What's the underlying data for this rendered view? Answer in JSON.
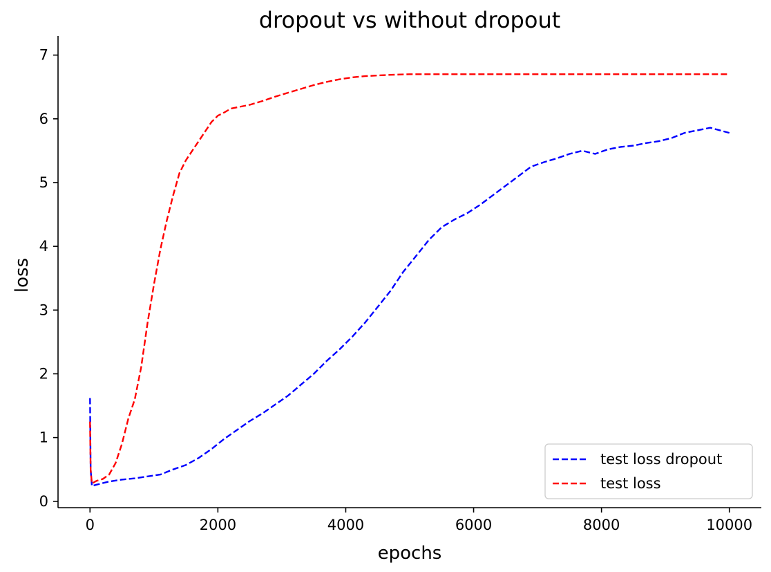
{
  "chart_data": {
    "type": "line",
    "title": "dropout vs without dropout",
    "xlabel": "epochs",
    "ylabel": "loss",
    "xlim": [
      -500,
      10500
    ],
    "ylim": [
      -0.1,
      7.3
    ],
    "xticks": [
      0,
      2000,
      4000,
      6000,
      8000,
      10000
    ],
    "xtick_labels": [
      "0",
      "2000",
      "4000",
      "6000",
      "8000",
      "10000"
    ],
    "yticks": [
      0,
      1,
      2,
      3,
      4,
      5,
      6,
      7
    ],
    "ytick_labels": [
      "0",
      "1",
      "2",
      "3",
      "4",
      "5",
      "6",
      "7"
    ],
    "grid": false,
    "legend_position": "lower-right",
    "series": [
      {
        "name": "test loss dropout",
        "color": "#0000ff",
        "line_style": "dashed",
        "x": [
          0,
          10,
          30,
          100,
          300,
          500,
          700,
          900,
          1100,
          1300,
          1500,
          1700,
          1900,
          2100,
          2300,
          2500,
          2700,
          2900,
          3100,
          3300,
          3500,
          3700,
          3900,
          4100,
          4300,
          4500,
          4700,
          4900,
          5100,
          5300,
          5500,
          5700,
          5900,
          6100,
          6300,
          6500,
          6700,
          6900,
          7100,
          7300,
          7500,
          7700,
          7900,
          8100,
          8300,
          8500,
          8700,
          8900,
          9100,
          9300,
          9500,
          9700,
          10000
        ],
        "y": [
          1.62,
          0.5,
          0.24,
          0.26,
          0.31,
          0.34,
          0.36,
          0.39,
          0.42,
          0.5,
          0.57,
          0.68,
          0.82,
          0.98,
          1.12,
          1.26,
          1.38,
          1.52,
          1.66,
          1.83,
          2.0,
          2.2,
          2.38,
          2.58,
          2.8,
          3.05,
          3.3,
          3.6,
          3.85,
          4.1,
          4.3,
          4.42,
          4.52,
          4.65,
          4.8,
          4.95,
          5.1,
          5.25,
          5.32,
          5.38,
          5.45,
          5.5,
          5.45,
          5.52,
          5.56,
          5.58,
          5.62,
          5.65,
          5.7,
          5.78,
          5.82,
          5.86,
          5.78
        ]
      },
      {
        "name": "test loss",
        "color": "#ff0000",
        "line_style": "dashed",
        "x": [
          0,
          10,
          30,
          100,
          200,
          300,
          400,
          500,
          600,
          700,
          800,
          900,
          1000,
          1100,
          1200,
          1300,
          1400,
          1500,
          1600,
          1700,
          1800,
          1900,
          2000,
          2100,
          2200,
          2300,
          2500,
          2700,
          2900,
          3100,
          3300,
          3500,
          3700,
          3900,
          4100,
          4300,
          4500,
          4700,
          5000,
          5500,
          6000,
          6500,
          7000,
          7500,
          8000,
          8500,
          9000,
          9500,
          10000
        ],
        "y": [
          1.25,
          0.5,
          0.28,
          0.32,
          0.35,
          0.42,
          0.6,
          0.9,
          1.3,
          1.6,
          2.1,
          2.8,
          3.4,
          3.95,
          4.4,
          4.8,
          5.15,
          5.35,
          5.5,
          5.65,
          5.8,
          5.95,
          6.05,
          6.1,
          6.16,
          6.18,
          6.22,
          6.28,
          6.35,
          6.41,
          6.47,
          6.53,
          6.58,
          6.62,
          6.65,
          6.67,
          6.68,
          6.69,
          6.7,
          6.7,
          6.7,
          6.7,
          6.7,
          6.7,
          6.7,
          6.7,
          6.7,
          6.7,
          6.7
        ]
      }
    ]
  }
}
